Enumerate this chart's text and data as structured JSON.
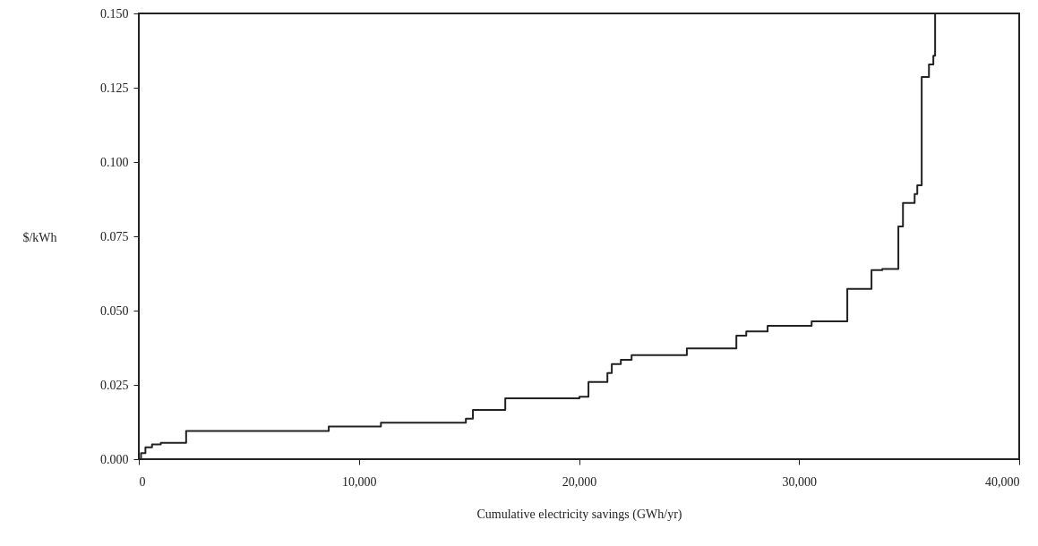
{
  "chart_data": {
    "type": "step",
    "xlabel": "Cumulative electricity savings (GWh/yr)",
    "ylabel": "$/kWh",
    "x": [
      0,
      100,
      300,
      600,
      1000,
      2150,
      8630,
      11000,
      14860,
      15180,
      16650,
      20020,
      20430,
      21290,
      21490,
      21900,
      22390,
      24900,
      27150,
      27600,
      28570,
      30570,
      32190,
      33290,
      33780,
      34510,
      34720,
      35250,
      35370,
      35570,
      35900,
      36100,
      36180
    ],
    "series": [
      {
        "color": "#222222",
        "values": [
          0.0,
          0.002,
          0.004,
          0.005,
          0.0055,
          0.0095,
          0.011,
          0.0123,
          0.0136,
          0.0166,
          0.0205,
          0.021,
          0.026,
          0.029,
          0.032,
          0.0334,
          0.035,
          0.0373,
          0.0416,
          0.043,
          0.0449,
          0.0464,
          0.0573,
          0.0636,
          0.064,
          0.0783,
          0.0862,
          0.0892,
          0.0922,
          0.1286,
          0.1328,
          0.1358,
          0.15
        ]
      }
    ],
    "xlim": [
      0,
      40000
    ],
    "ylim": [
      0,
      0.15
    ],
    "xticks": [
      0,
      {
        "value": 10000,
        "label": "10,000"
      },
      {
        "value": 20000,
        "label": "20,000"
      },
      {
        "value": 30000,
        "label": "30,000"
      },
      {
        "value": 40000,
        "label": "40,000"
      }
    ],
    "yticks": [
      {
        "value": 0,
        "label": "0.000"
      },
      {
        "value": 0.025,
        "label": "0.025"
      },
      {
        "value": 0.05,
        "label": "0.050"
      },
      {
        "value": 0.075,
        "label": "0.075"
      },
      {
        "value": 0.1,
        "label": "0.100"
      },
      {
        "value": 0.125,
        "label": "0.125"
      },
      {
        "value": 0.15,
        "label": "0.150"
      }
    ],
    "grid": false,
    "marker": "none",
    "line_style": "solid"
  }
}
